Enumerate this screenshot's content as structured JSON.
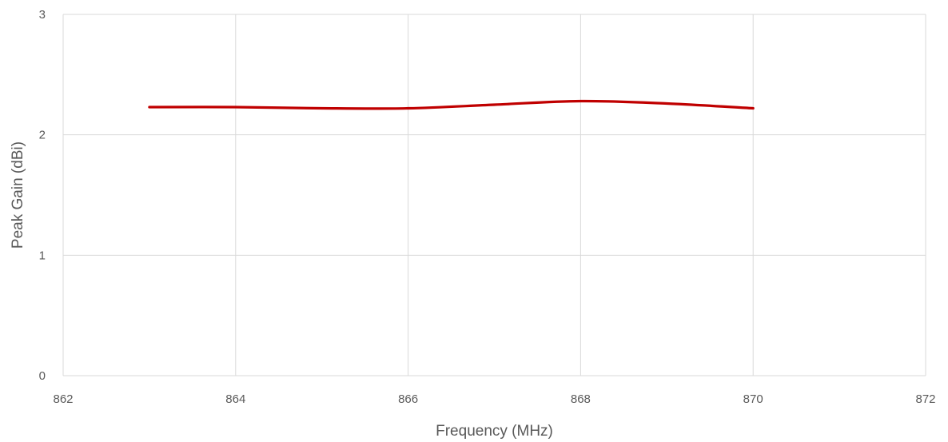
{
  "chart_data": {
    "type": "line",
    "title": "",
    "xlabel": "Frequency (MHz)",
    "ylabel": "Peak Gain (dBi)",
    "xlim": [
      862,
      872
    ],
    "ylim": [
      0,
      3
    ],
    "x_ticks": [
      "862",
      "864",
      "866",
      "868",
      "870",
      "872"
    ],
    "y_ticks": [
      "0",
      "1",
      "2",
      "3"
    ],
    "grid": true,
    "legend": "none",
    "smooth": true,
    "series": [
      {
        "color": "#c00000",
        "x": [
          863,
          864,
          865,
          866,
          867,
          868,
          869,
          870
        ],
        "values": [
          2.23,
          2.23,
          2.22,
          2.22,
          2.25,
          2.28,
          2.26,
          2.22
        ]
      }
    ]
  }
}
